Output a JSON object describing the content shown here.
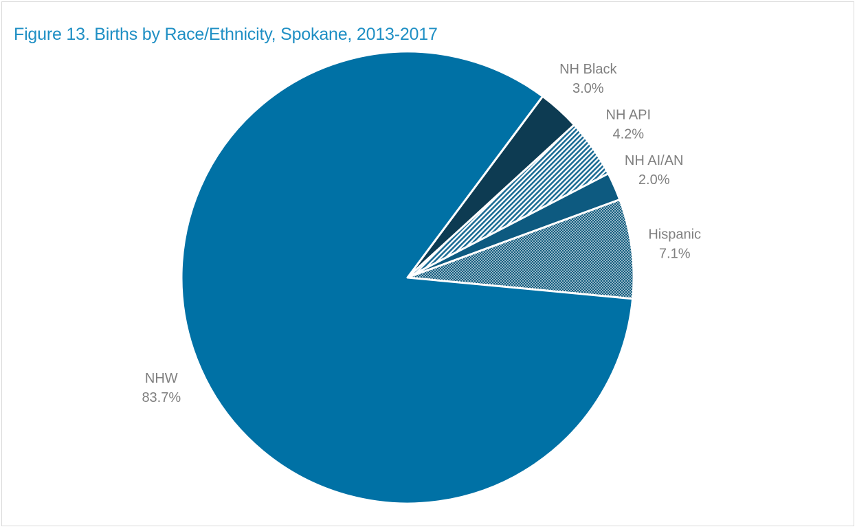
{
  "chart_data": {
    "type": "pie",
    "title": "Figure 13. Births by Race/Ethnicity, Spokane, 2013-2017",
    "start": "NH Black",
    "direction": "clockwise",
    "slices": [
      {
        "name": "NH Black",
        "value": 3.0,
        "label": "3.0%",
        "color": "#0d3b52",
        "pattern": "solid"
      },
      {
        "name": "NH API",
        "value": 4.2,
        "label": "4.2%",
        "color": "#1b6b94",
        "pattern": "diagonal-hatch"
      },
      {
        "name": "NH AI/AN",
        "value": 2.0,
        "label": "2.0%",
        "color": "#0d5a80",
        "pattern": "solid"
      },
      {
        "name": "Hispanic",
        "value": 7.1,
        "label": "7.1%",
        "color": "#135d80",
        "pattern": "dots"
      },
      {
        "name": "NHW",
        "value": 83.7,
        "label": "83.7%",
        "color": "#0071a5",
        "pattern": "solid"
      }
    ]
  }
}
